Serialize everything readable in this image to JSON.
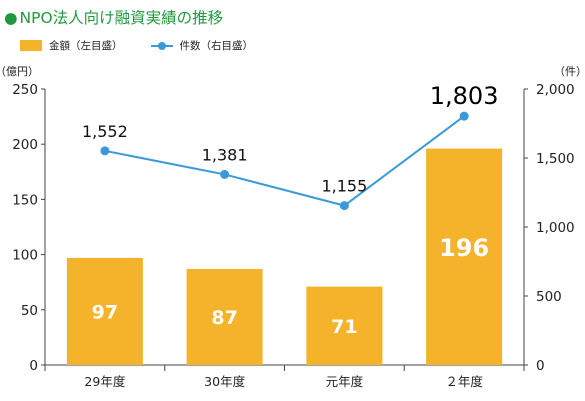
{
  "title": "NPO法人向け融資実績の推移",
  "chart_data": {
    "type": "bar",
    "categories": [
      "29年度",
      "30年度",
      "元年度",
      "２年度"
    ],
    "series": [
      {
        "name": "金額（左目盛）",
        "type": "bar",
        "axis": "left",
        "values": [
          97,
          87,
          71,
          196
        ],
        "color": "#f4b32b"
      },
      {
        "name": "件数（右目盛）",
        "type": "line",
        "axis": "right",
        "values": [
          1552,
          1381,
          1155,
          1803
        ],
        "value_labels": [
          "1,552",
          "1,381",
          "1,155",
          "1,803"
        ],
        "color": "#3a9ad9"
      }
    ],
    "y_left": {
      "unit": "（億円）",
      "range": [
        0,
        250
      ],
      "ticks": [
        0,
        50,
        100,
        150,
        200,
        250
      ]
    },
    "y_right": {
      "unit": "（件）",
      "range": [
        0,
        2000
      ],
      "ticks": [
        "0",
        "500",
        "1,000",
        "1,500",
        "2,000"
      ],
      "tick_values": [
        0,
        500,
        1000,
        1500,
        2000
      ]
    },
    "legend_position": "top-left",
    "grid": false
  }
}
